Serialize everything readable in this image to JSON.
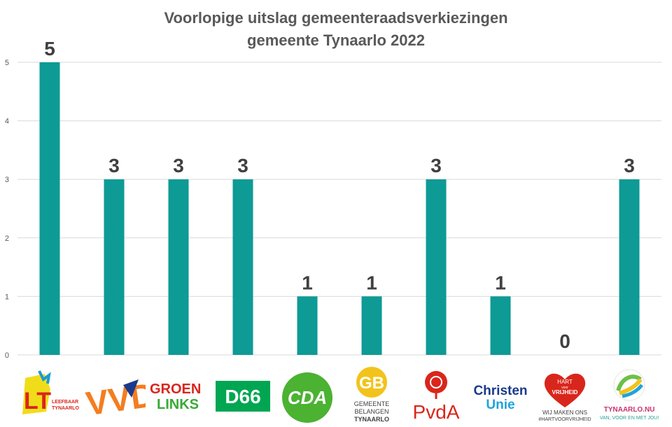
{
  "title_line1": "Voorlopige uitslag gemeenteraadsverkiezingen",
  "title_line2": "gemeente Tynaarlo 2022",
  "chart_data": {
    "type": "bar",
    "title": "Voorlopige uitslag gemeenteraadsverkiezingen gemeente Tynaarlo 2022",
    "categories": [
      "Leefbaar Tynaarlo",
      "VVD",
      "GroenLinks",
      "D66",
      "CDA",
      "Gemeente Belangen Tynaarlo",
      "PvdA",
      "ChristenUnie",
      "Hart voor Vrijheid",
      "Tynaarlo.nu"
    ],
    "values": [
      5,
      3,
      3,
      3,
      1,
      1,
      3,
      1,
      0,
      3
    ],
    "yticks": [
      0,
      1,
      2,
      3,
      4,
      5
    ],
    "ylim": [
      0,
      5
    ],
    "grid": true,
    "bar_color": "#0e9a95",
    "xlabel": "",
    "ylabel": ""
  },
  "logos": {
    "lt": {
      "big": "LT",
      "small1": "LEEFBAAR",
      "small2": "TYNAARLO"
    },
    "vvd": {
      "text": "VVD"
    },
    "gl": {
      "line1": "GROEN",
      "line2": "LINKS"
    },
    "d66": {
      "text": "D66"
    },
    "cda": {
      "text": "CDA"
    },
    "gb": {
      "mark": "GB",
      "line1": "GEMEENTE",
      "line2": "BELANGEN",
      "line3": "TYNAARLO"
    },
    "pvda": {
      "text": "PvdA"
    },
    "cu": {
      "line1": "Christen",
      "line2": "Unie"
    },
    "hvv": {
      "line1": "HART",
      "line2": "voor",
      "line3": "VRIJHEID",
      "slogan1": "WIJ MAKEN ONS",
      "slogan2": "#HARTVOORVRIJHEID"
    },
    "tn": {
      "name": "TYNAARLO.NU",
      "slogan": "VAN, VOOR EN MET JOU!"
    }
  }
}
